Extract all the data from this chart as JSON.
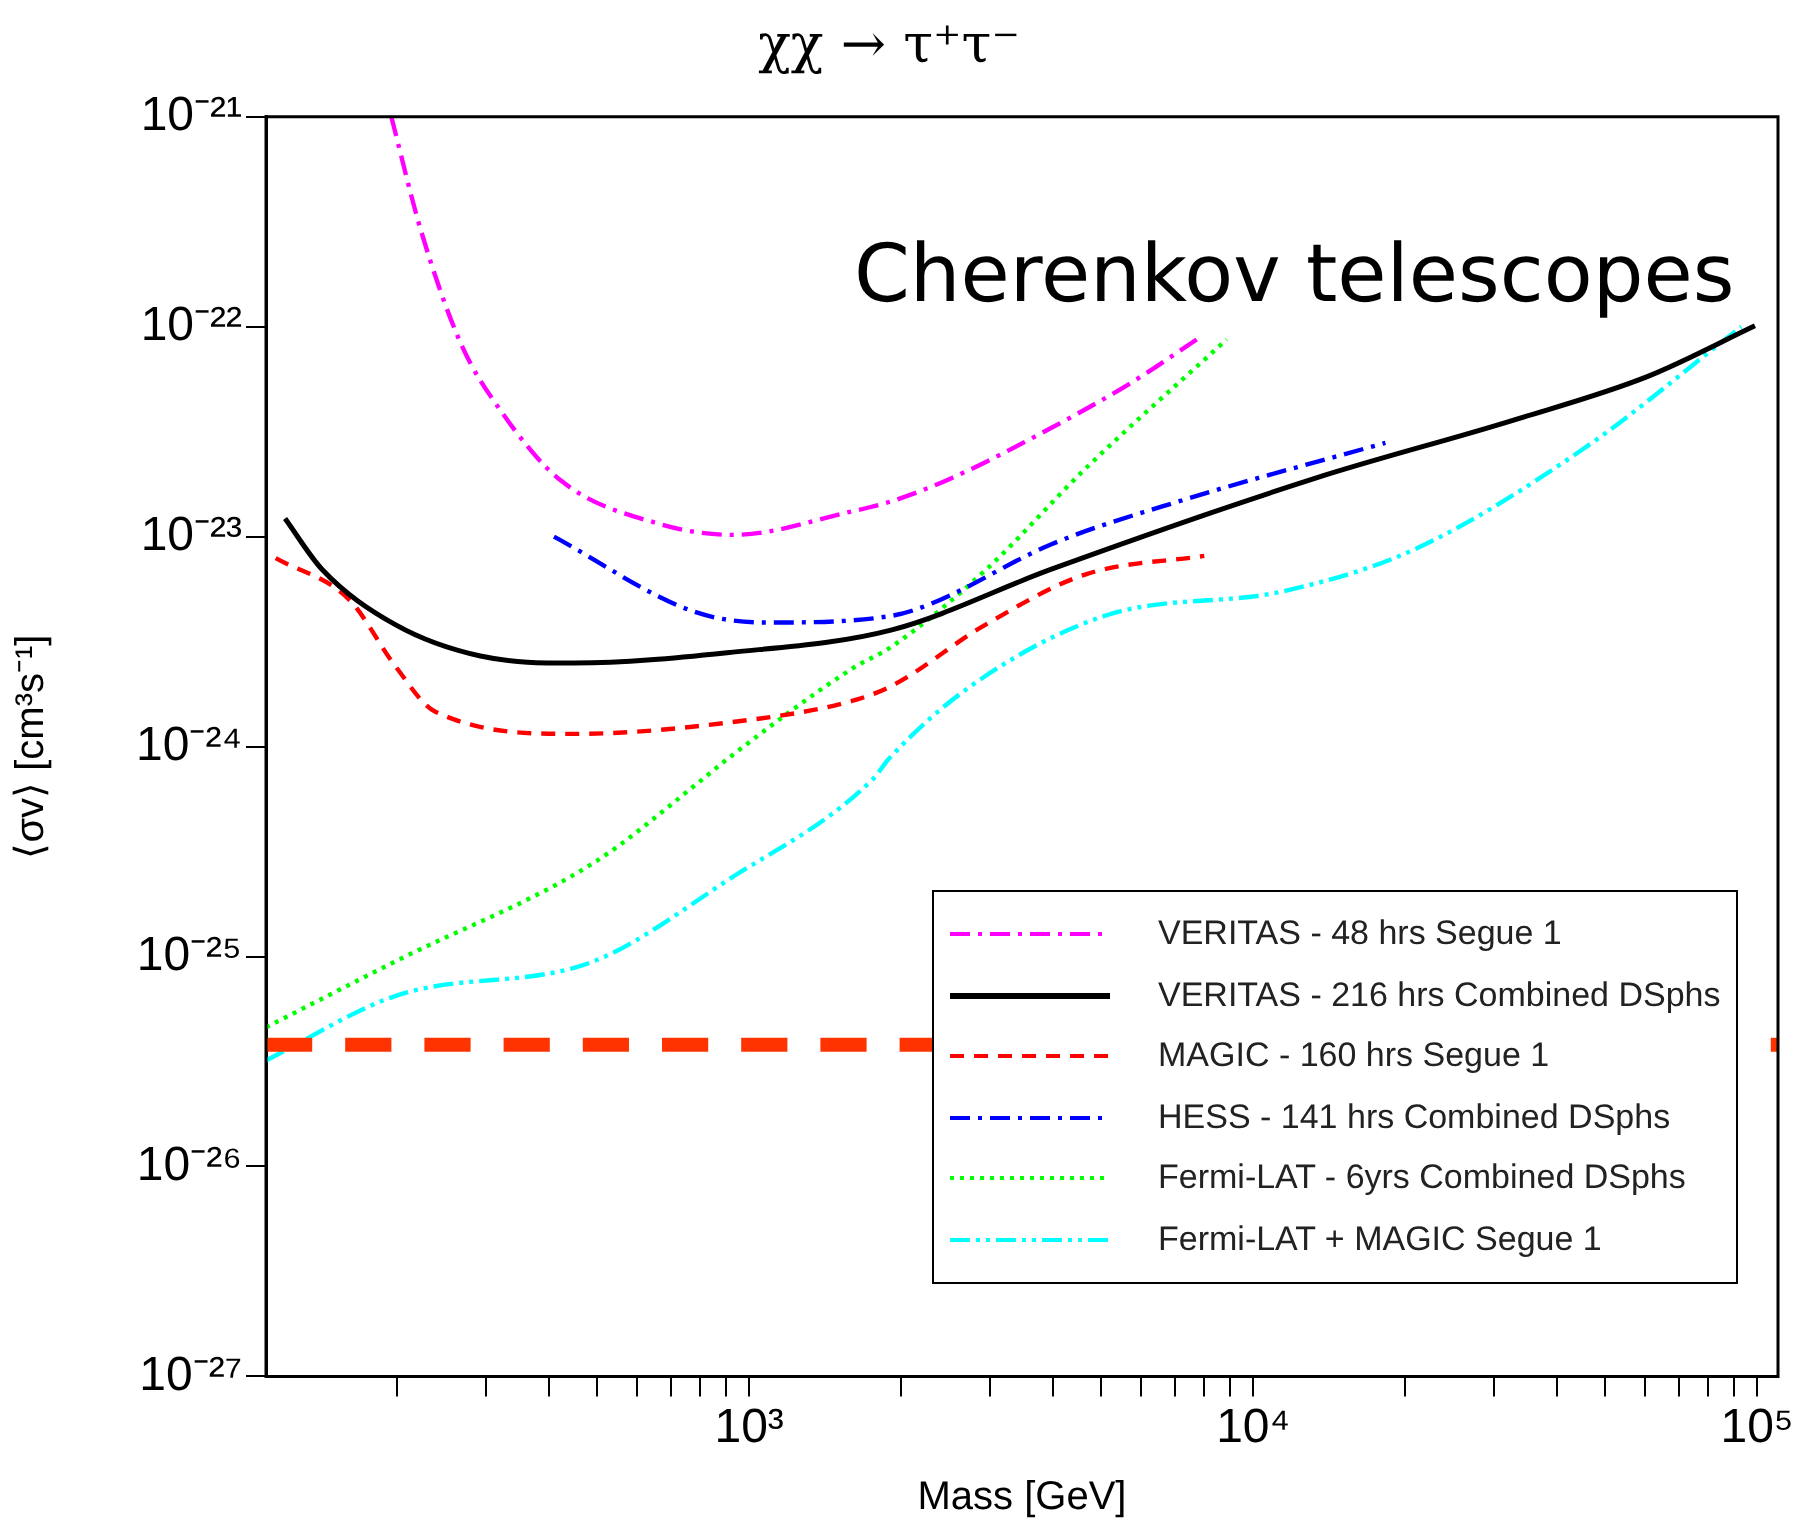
{
  "chart_data": {
    "type": "line",
    "title": "χχ → τ⁺τ⁻",
    "xlabel": "Mass [GeV]",
    "ylabel": "⟨σv⟩ [cm³s⁻¹]",
    "log": "xy",
    "legend": "bottom right",
    "grid": false,
    "marker": "none",
    "xlim": [
      110,
      110000
    ],
    "ylim": [
      1e-27,
      1e-21
    ],
    "xticks": [
      {
        "value": 200,
        "label": null
      },
      {
        "value": 300,
        "label": null
      },
      {
        "value": 400,
        "label": null
      },
      {
        "value": 500,
        "label": null
      },
      {
        "value": 600,
        "label": null
      },
      {
        "value": 700,
        "label": null
      },
      {
        "value": 800,
        "label": null
      },
      {
        "value": 900,
        "label": null
      },
      {
        "value": 1000,
        "label": "10³"
      },
      {
        "value": 2000,
        "label": null
      },
      {
        "value": 3000,
        "label": null
      },
      {
        "value": 4000,
        "label": null
      },
      {
        "value": 5000,
        "label": null
      },
      {
        "value": 6000,
        "label": null
      },
      {
        "value": 7000,
        "label": null
      },
      {
        "value": 8000,
        "label": null
      },
      {
        "value": 9000,
        "label": null
      },
      {
        "value": 10000,
        "label": "10⁴"
      },
      {
        "value": 20000,
        "label": null
      },
      {
        "value": 30000,
        "label": null
      },
      {
        "value": 40000,
        "label": null
      },
      {
        "value": 50000,
        "label": null
      },
      {
        "value": 60000,
        "label": null
      },
      {
        "value": 70000,
        "label": null
      },
      {
        "value": 80000,
        "label": null
      },
      {
        "value": 90000,
        "label": null
      },
      {
        "value": 100000,
        "label": "10⁵"
      }
    ],
    "yticks": [
      {
        "value": 1e-27,
        "label": "10⁻²⁷"
      },
      {
        "value": 1e-26,
        "label": "10⁻²⁶"
      },
      {
        "value": 1e-25,
        "label": "10⁻²⁵"
      },
      {
        "value": 1e-24,
        "label": "10⁻²⁴"
      },
      {
        "value": 1e-23,
        "label": "10⁻²³"
      },
      {
        "value": 1e-22,
        "label": "10⁻²²"
      },
      {
        "value": 1e-21,
        "label": "10⁻²¹"
      }
    ],
    "annotations": [
      "Cherenkov telescopes"
    ],
    "ref_lines": [
      {
        "axis": "y",
        "value": 3.8e-26,
        "color": "#ff3300",
        "line_style": "dashed"
      }
    ],
    "series": [
      {
        "name": "VERITAS - 48 hrs Segue 1",
        "color": "#ff00ff",
        "line_style": "dashdot",
        "x": [
          195,
          223,
          268,
          321,
          422,
          664,
          930,
          1600,
          1925,
          2520,
          3980,
          5720,
          7730
        ],
        "values": [
          1e-21,
          2.9e-22,
          8.3e-23,
          4e-23,
          1.86e-23,
          1.15e-23,
          1.02e-23,
          1.32e-23,
          1.48e-23,
          1.9e-23,
          3.3e-23,
          5.4e-23,
          8.7e-23
        ]
      },
      {
        "name": "VERITAS - 216 hrs Combined DSphs",
        "color": "#000000",
        "line_style": "solid",
        "x": [
          120,
          142,
          199,
          293,
          450,
          904,
          1920,
          3980,
          13300,
          33000,
          60700,
          99000
        ],
        "values": [
          1.22e-23,
          7e-24,
          3.8e-24,
          2.7e-24,
          2.5e-24,
          2.8e-24,
          3.6e-24,
          7e-24,
          1.9e-23,
          3.6e-23,
          5.8e-23,
          1.01e-22
        ]
      },
      {
        "name": "MAGIC - 160 hrs Segue 1",
        "color": "#ff0000",
        "line_style": "dashed",
        "x": [
          115,
          161,
          199,
          238,
          450,
          904,
          1600,
          1920,
          2940,
          4640,
          8000
        ],
        "values": [
          7.9e-24,
          5e-24,
          2.4e-24,
          1.47e-24,
          1.15e-24,
          1.3e-24,
          1.65e-24,
          1.95e-24,
          3.8e-24,
          6.6e-24,
          8.1e-24
        ]
      },
      {
        "name": "HESS - 141 hrs Combined DSphs",
        "color": "#0000ff",
        "line_style": "dashdot",
        "x": [
          410,
          776,
          1085,
          1920,
          2300,
          3980,
          7300,
          18300
        ],
        "values": [
          1e-23,
          4.4e-24,
          3.9e-24,
          4.2e-24,
          4.8e-24,
          9.2e-24,
          1.5e-23,
          2.8e-23
        ]
      },
      {
        "name": "Fermi-LAT - 6yrs Combined DSphs",
        "color": "#00ff00",
        "line_style": "dotted",
        "x": [
          110,
          199,
          492,
          797,
          904,
          1600,
          1920,
          2940,
          4640,
          8860
        ],
        "values": [
          4.6e-26,
          9.5e-26,
          2.8e-25,
          6.8e-25,
          8.7e-25,
          2.35e-24,
          3e-24,
          6.9e-24,
          2.1e-23,
          8.7e-23
        ]
      },
      {
        "name": "Fermi-LAT + MAGIC Segue 1",
        "color": "#00ffff",
        "line_style": "dashdotdot",
        "x": [
          110,
          199,
          492,
          904,
          1760,
          1890,
          2760,
          5080,
          11500,
          20900,
          45000,
          93000
        ],
        "values": [
          3.2e-26,
          6.5e-26,
          9.5e-26,
          2.3e-25,
          7e-25,
          8.7e-25,
          1.95e-24,
          4.2e-24,
          5.5e-24,
          8.7e-24,
          2.6e-23,
          1e-22
        ]
      }
    ]
  }
}
